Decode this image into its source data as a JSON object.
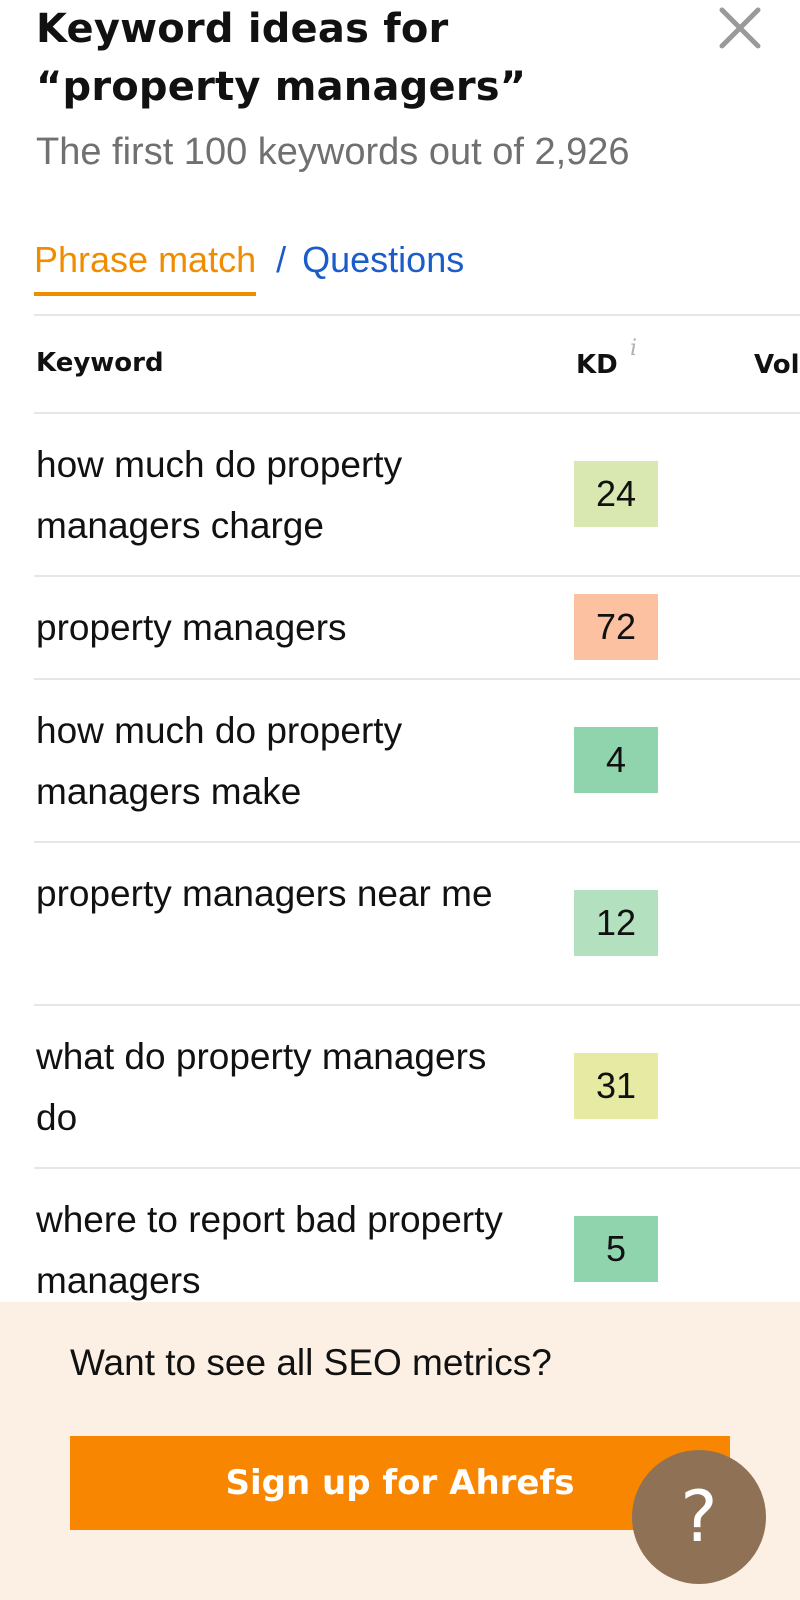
{
  "header": {
    "title_line1": "Keyword ideas for",
    "title_line2": "“property managers”",
    "subtitle": "The first 100 keywords out of 2,926",
    "close_icon": "close-icon"
  },
  "tabs": {
    "active": "Phrase match",
    "separator": "/",
    "other": "Questions",
    "active_color": "#f08c00",
    "link_color": "#1a5dc9"
  },
  "table": {
    "columns": {
      "keyword": "Keyword",
      "kd": "KD",
      "kd_info": "i",
      "volume": "Vol"
    },
    "rows": [
      {
        "keyword": "how much do property managers charge",
        "kd": "24",
        "kd_color": "#d8e8b0"
      },
      {
        "keyword": "property managers",
        "kd": "72",
        "kd_color": "#fbc1a0"
      },
      {
        "keyword": "how much do property managers make",
        "kd": "4",
        "kd_color": "#8fd4ad"
      },
      {
        "keyword": "property managers near me",
        "kd": "12",
        "kd_color": "#b3e0be"
      },
      {
        "keyword": "what do property managers do",
        "kd": "31",
        "kd_color": "#e6eaa2"
      },
      {
        "keyword": "where to report bad property managers",
        "kd": "5",
        "kd_color": "#8fd4ad"
      }
    ]
  },
  "signup": {
    "prompt": "Want to see all SEO metrics?",
    "button_label": "Sign up for Ahrefs",
    "button_color": "#f88600",
    "panel_color": "#fcf0e4"
  },
  "help": {
    "label": "?",
    "icon": "help-icon"
  }
}
